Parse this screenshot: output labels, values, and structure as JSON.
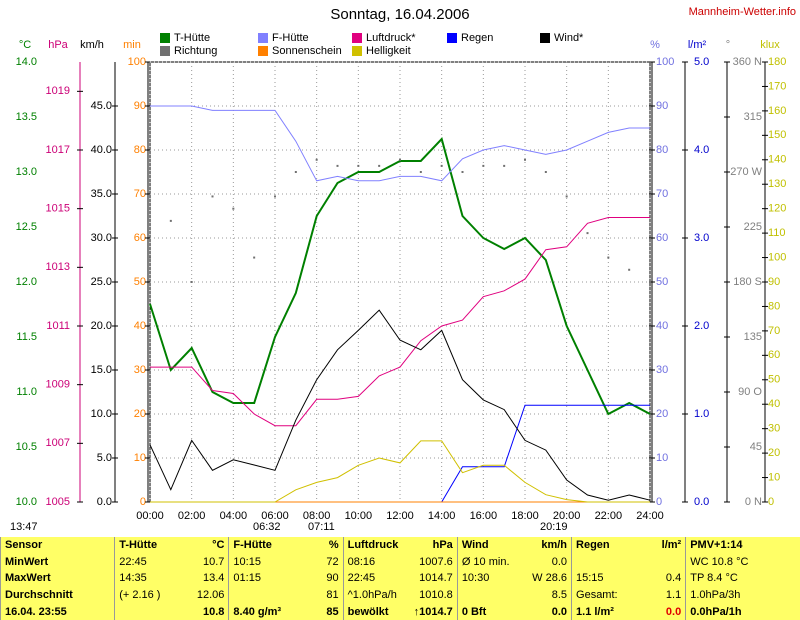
{
  "chart_data": {
    "type": "line",
    "title": "Sonntag, 16.04.2006",
    "source": "Mannheim-Wetter.info",
    "x": [
      0,
      1,
      2,
      3,
      4,
      5,
      6,
      7,
      8,
      9,
      10,
      11,
      12,
      13,
      14,
      15,
      16,
      17,
      18,
      19,
      20,
      21,
      22,
      23,
      24
    ],
    "xlim": [
      0,
      24
    ],
    "xticks": [
      {
        "value": 0,
        "label": "00:00"
      },
      {
        "value": 2,
        "label": "02:00"
      },
      {
        "value": 4,
        "label": "04:00"
      },
      {
        "value": 6,
        "label": "06:00"
      },
      {
        "value": 8,
        "label": "08:00"
      },
      {
        "value": 10,
        "label": "10:00"
      },
      {
        "value": 12,
        "label": "12:00"
      },
      {
        "value": 14,
        "label": "14:00"
      },
      {
        "value": 16,
        "label": "16:00"
      },
      {
        "value": 18,
        "label": "18:00"
      },
      {
        "value": 20,
        "label": "20:00"
      },
      {
        "value": 22,
        "label": "22:00"
      },
      {
        "value": 24,
        "label": "24:00"
      }
    ],
    "grid": true,
    "annotations": [
      "13:47",
      "06:32",
      "07:11",
      "20:19"
    ],
    "axes": [
      {
        "label": "°C",
        "color": "#008000",
        "ylim": [
          10,
          14
        ],
        "yticks": [
          {
            "value": 10,
            "label": "10.0"
          },
          10.5,
          {
            "value": 11,
            "label": "11.0"
          },
          11.5,
          {
            "value": 12,
            "label": "12.0"
          },
          12.5,
          {
            "value": 13,
            "label": "13.0"
          },
          13.5,
          {
            "value": 14,
            "label": "14.0"
          }
        ]
      },
      {
        "label": "hPa",
        "color": "#cc0077",
        "ylim": [
          1005,
          1020
        ],
        "yticks": [
          1005,
          1007,
          1009,
          1011,
          1013,
          1015,
          1017,
          1019
        ]
      },
      {
        "label": "km/h",
        "color": "#000000",
        "ylim": [
          0,
          50
        ],
        "yticks": [
          {
            "value": 0,
            "label": "0.0"
          },
          {
            "value": 5,
            "label": "5.0"
          },
          {
            "value": 10,
            "label": "10.0"
          },
          {
            "value": 15,
            "label": "15.0"
          },
          {
            "value": 20,
            "label": "20.0"
          },
          {
            "value": 25,
            "label": "25.0"
          },
          {
            "value": 30,
            "label": "30.0"
          },
          {
            "value": 35,
            "label": "35.0"
          },
          {
            "value": 40,
            "label": "40.0"
          },
          {
            "value": 45,
            "label": "45.0"
          }
        ]
      },
      {
        "label": "min",
        "color": "#ff8000",
        "ylim": [
          0,
          100
        ],
        "yticks": [
          0,
          10,
          20,
          30,
          40,
          50,
          60,
          70,
          80,
          90,
          100
        ]
      },
      {
        "label": "%",
        "color": "#7070e0",
        "ylim": [
          0,
          100
        ],
        "yticks": [
          0,
          10,
          20,
          30,
          40,
          50,
          60,
          70,
          80,
          90,
          100
        ]
      },
      {
        "label": "l/m²",
        "color": "#0000cc",
        "ylim": [
          0,
          5
        ],
        "yticks": [
          {
            "value": 0,
            "label": "0.0"
          },
          {
            "value": 1,
            "label": "1.0"
          },
          {
            "value": 2,
            "label": "2.0"
          },
          {
            "value": 3,
            "label": "3.0"
          },
          {
            "value": 4,
            "label": "4.0"
          },
          {
            "value": 5,
            "label": "5.0"
          }
        ]
      },
      {
        "label": "°",
        "color": "#808080",
        "ylim": [
          0,
          360
        ],
        "yticks": [
          {
            "value": 0,
            "label": "0 N"
          },
          45,
          {
            "value": 90,
            "label": "90 O"
          },
          135,
          {
            "value": 180,
            "label": "180 S"
          },
          225,
          {
            "value": 270,
            "label": "270 W"
          },
          315,
          {
            "value": 360,
            "label": "360 N"
          }
        ]
      },
      {
        "label": "klux",
        "color": "#c0c000",
        "ylim": [
          0,
          180
        ],
        "yticks": [
          0,
          10,
          20,
          30,
          40,
          50,
          60,
          70,
          80,
          90,
          100,
          110,
          120,
          130,
          140,
          150,
          160,
          170,
          180
        ]
      }
    ],
    "series": [
      {
        "name": "T-Hütte",
        "color": "#008000",
        "axis": 0,
        "values": [
          11.8,
          11.2,
          11.4,
          11.0,
          10.9,
          10.9,
          11.5,
          11.9,
          12.6,
          12.9,
          13.0,
          13.0,
          13.1,
          13.1,
          13.3,
          12.6,
          12.4,
          12.3,
          12.4,
          12.2,
          11.6,
          11.2,
          10.8,
          10.9,
          10.8
        ]
      },
      {
        "name": "F-Hütte",
        "color": "#8080ff",
        "axis": 4,
        "values": [
          90,
          90,
          90,
          89,
          89,
          89,
          89,
          82,
          73,
          74,
          73,
          73,
          74,
          74,
          73,
          78,
          80,
          81,
          80,
          79,
          80,
          82,
          84,
          85,
          85
        ]
      },
      {
        "name": "Luftdruck*",
        "color": "#e0007f",
        "axis": 1,
        "values": [
          1009.6,
          1009.6,
          1009.6,
          1008.8,
          1008.7,
          1008.0,
          1007.6,
          1007.6,
          1008.5,
          1008.5,
          1008.6,
          1009.3,
          1009.6,
          1010.5,
          1011.0,
          1011.2,
          1012.0,
          1012.2,
          1012.6,
          1013.6,
          1013.7,
          1014.5,
          1014.7,
          1014.7,
          1014.7
        ]
      },
      {
        "name": "Regen",
        "color": "#0000ff",
        "axis": 5,
        "values": [
          0,
          0,
          0,
          0,
          0,
          0,
          0,
          0,
          0,
          0,
          0,
          0,
          0,
          0,
          0,
          0.4,
          0.4,
          0.4,
          1.1,
          1.1,
          1.1,
          1.1,
          1.1,
          1.1,
          1.1
        ]
      },
      {
        "name": "Wind*",
        "color": "#000000",
        "axis": 2,
        "values": [
          6.5,
          1.4,
          7.0,
          3.6,
          4.8,
          4.2,
          3.6,
          9.3,
          13.9,
          17.3,
          19.5,
          21.8,
          18.4,
          17.3,
          19.5,
          13.9,
          11.6,
          10.5,
          7.0,
          5.9,
          2.5,
          0.8,
          0.2,
          0.8,
          0.2
        ]
      },
      {
        "name": "Richtung",
        "color": "#707070",
        "axis": 6,
        "style": "dots",
        "values": [
          200,
          230,
          180,
          250,
          240,
          200,
          250,
          270,
          280,
          275,
          275,
          275,
          280,
          270,
          275,
          270,
          275,
          275,
          280,
          270,
          250,
          220,
          200,
          190,
          180
        ]
      },
      {
        "name": "Sonnenschein",
        "color": "#ff8000",
        "axis": 3,
        "values": [
          0,
          0,
          0,
          0,
          0,
          0,
          0,
          0,
          0,
          0,
          0,
          0,
          0,
          0,
          0,
          0,
          0,
          0,
          0,
          0,
          0,
          0,
          0,
          0,
          0
        ]
      },
      {
        "name": "Helligkeit",
        "color": "#d0c000",
        "axis": 7,
        "values": [
          0,
          0,
          0,
          0,
          0,
          0,
          0,
          5,
          8,
          10,
          15,
          18,
          16,
          25,
          25,
          12,
          15,
          15,
          8,
          3,
          1,
          0,
          0,
          0,
          0
        ]
      }
    ]
  },
  "table": {
    "rows": [
      [
        [
          "Sensor"
        ],
        [
          "T-Hütte",
          "°C"
        ],
        [
          "F-Hütte",
          "%"
        ],
        [
          "Luftdruck",
          "hPa"
        ],
        [
          "Wind",
          "km/h"
        ],
        [
          "Regen",
          "l/m²"
        ],
        [
          "PMV+1:14"
        ]
      ],
      [
        [
          "MinWert"
        ],
        [
          "22:45",
          "10.7"
        ],
        [
          "10:15",
          "72"
        ],
        [
          "08:16",
          "1007.6"
        ],
        [
          "Ø 10 min.",
          "0.0"
        ],
        [],
        [
          "WC 10.8 °C"
        ]
      ],
      [
        [
          "MaxWert"
        ],
        [
          "14:35",
          "13.4"
        ],
        [
          "01:15",
          "90"
        ],
        [
          "22:45",
          "1014.7"
        ],
        [
          "10:30",
          "W 28.6"
        ],
        [
          "15:15",
          "0.4"
        ],
        [
          "TP 8.4 °C"
        ]
      ],
      [
        [
          "Durchschnitt"
        ],
        [
          "(+ 2.16 )",
          "12.06"
        ],
        [
          "81"
        ],
        [
          "^1.0hPa/h",
          "1010.8"
        ],
        [
          "8.5"
        ],
        [
          "Gesamt:",
          "1.1"
        ],
        [
          "1.0hPa/3h"
        ]
      ],
      [
        [
          "16.04. 23:55"
        ],
        [
          "10.8"
        ],
        [
          "8.40 g/m³",
          "85"
        ],
        [
          "bewölkt",
          "↑1014.7"
        ],
        [
          "0 Bft",
          "0.0"
        ],
        [
          "1.1 l/m²",
          "0.0"
        ],
        [
          "0.0hPa/1h"
        ]
      ]
    ]
  }
}
